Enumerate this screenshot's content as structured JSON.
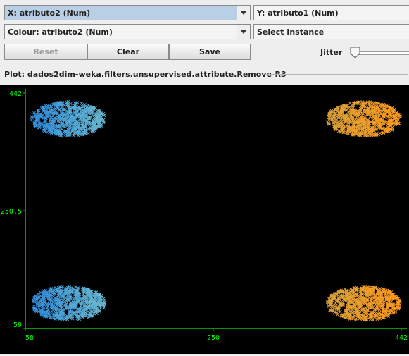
{
  "x_axis": {
    "value": "X: atributo2 (Num)"
  },
  "y_axis": {
    "value": "Y: atributo1 (Num)"
  },
  "colour": {
    "value": "Colour: atributo2 (Num)"
  },
  "select_instance": {
    "value": "Select Instance"
  },
  "buttons": {
    "reset": "Reset",
    "clear": "Clear",
    "save": "Save"
  },
  "jitter": {
    "label": "Jitter",
    "level": 0
  },
  "plot": {
    "title": "Plot: dados2dim-weka.filters.unsupervised.attribute.Remove-R3"
  },
  "chart_data": {
    "type": "scatter",
    "x_ticks": [
      "58",
      "250",
      "442"
    ],
    "y_ticks": [
      "442",
      "250.5",
      "59"
    ],
    "xlim": [
      58,
      442
    ],
    "ylim": [
      59,
      442
    ],
    "marker": "x",
    "colour_scale": [
      "#1f6fd8",
      "#9c9c9c",
      "#ff9a1e"
    ],
    "clusters": [
      {
        "cx_range": [
          64,
          140
        ],
        "cy_range": [
          372,
          428
        ],
        "colour_range": [
          "#2f8cdb",
          "#6dbbd0"
        ]
      },
      {
        "cx_range": [
          366,
          442
        ],
        "cy_range": [
          372,
          428
        ],
        "colour_range": [
          "#d9a33c",
          "#ff9a1e"
        ]
      },
      {
        "cx_range": [
          64,
          140
        ],
        "cy_range": [
          72,
          128
        ],
        "colour_range": [
          "#2f8cdb",
          "#6dbbd0"
        ]
      },
      {
        "cx_range": [
          366,
          442
        ],
        "cy_range": [
          72,
          128
        ],
        "colour_range": [
          "#d9a33c",
          "#ff9a1e"
        ]
      }
    ]
  }
}
